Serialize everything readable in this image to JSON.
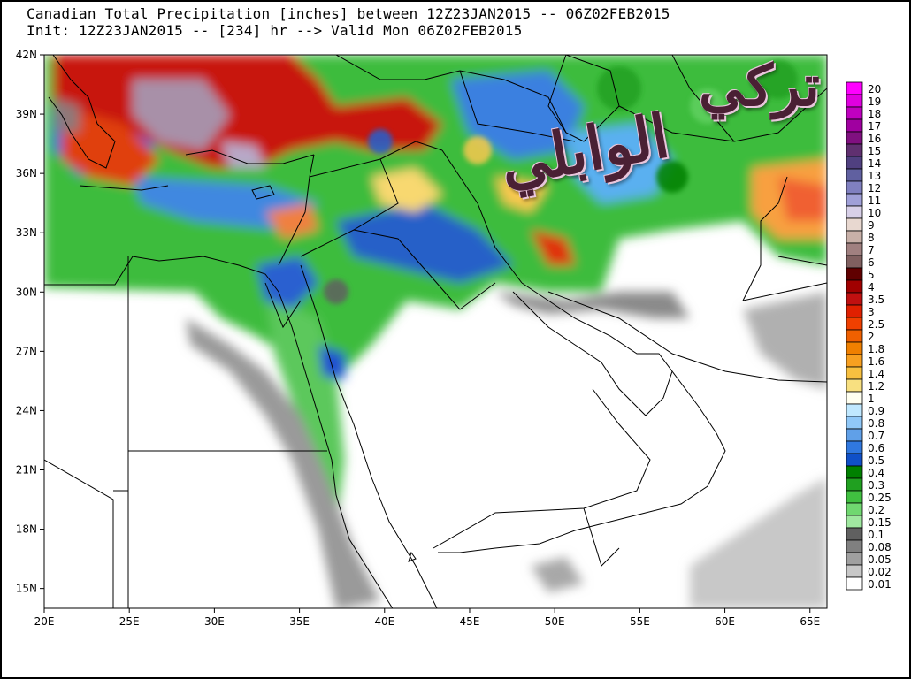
{
  "header": {
    "line1": "Canadian Total Precipitation [inches] between 12Z23JAN2015 -- 06Z02FEB2015",
    "line2": "Init: 12Z23JAN2015 -- [234] hr --> Valid Mon 06Z02FEB2015"
  },
  "axes": {
    "lon_labels": [
      "20E",
      "25E",
      "30E",
      "35E",
      "40E",
      "45E",
      "50E",
      "55E",
      "60E",
      "65E"
    ],
    "lat_labels": [
      "42N",
      "39N",
      "36N",
      "33N",
      "30N",
      "27N",
      "24N",
      "21N",
      "18N",
      "15N"
    ],
    "lon_range": [
      20,
      66
    ],
    "lat_range": [
      14,
      42
    ]
  },
  "legend": {
    "levels": [
      "20",
      "19",
      "18",
      "17",
      "16",
      "15",
      "14",
      "13",
      "12",
      "11",
      "10",
      "9",
      "8",
      "7",
      "6",
      "5",
      "4",
      "3.5",
      "3",
      "2.5",
      "2",
      "1.8",
      "1.6",
      "1.4",
      "1.2",
      "1",
      "0.9",
      "0.8",
      "0.7",
      "0.6",
      "0.5",
      "0.4",
      "0.3",
      "0.25",
      "0.2",
      "0.15",
      "0.1",
      "0.08",
      "0.05",
      "0.02",
      "0.01"
    ],
    "colors": [
      "#ff00ff",
      "#e000e0",
      "#c000c0",
      "#a000a0",
      "#801080",
      "#603070",
      "#504080",
      "#6060a0",
      "#8080c0",
      "#a0a0d8",
      "#d8d0e8",
      "#e8d8d0",
      "#c8b0a8",
      "#a08080",
      "#806060",
      "#600000",
      "#a00000",
      "#c01010",
      "#e02000",
      "#f04000",
      "#f06000",
      "#f08000",
      "#f8a020",
      "#f8c040",
      "#f8e080",
      "#fffff0",
      "#c0e8ff",
      "#90c8f8",
      "#60a0e8",
      "#3078e0",
      "#1050c8",
      "#008000",
      "#20a020",
      "#40c040",
      "#70d870",
      "#a0e8a0",
      "#606060",
      "#808080",
      "#a0a0a0",
      "#c8c8c8",
      "#ffffff"
    ]
  },
  "watermark": {
    "line1": "تركي",
    "line2": "الوابلي"
  }
}
